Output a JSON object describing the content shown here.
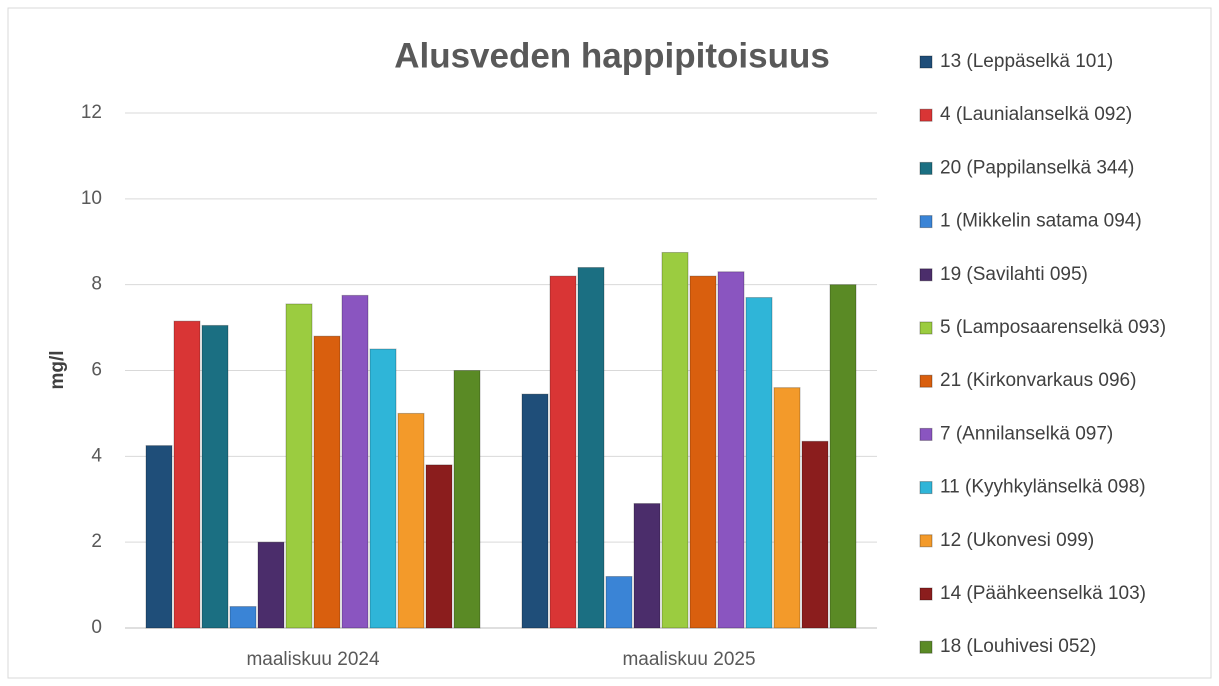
{
  "chart_data": {
    "type": "bar",
    "title": "Alusveden happipitoisuus",
    "y_label": "mg/l",
    "categories": [
      "maaliskuu 2024",
      "maaliskuu 2025"
    ],
    "series": [
      {
        "name": "13 (Leppäselkä 101)",
        "color": "#1f4e79",
        "values": [
          4.25,
          5.45
        ]
      },
      {
        "name": "4 (Launialanselkä 092)",
        "color": "#d93535",
        "values": [
          7.15,
          8.2
        ]
      },
      {
        "name": "20 (Pappilanselkä 344)",
        "color": "#1b6f82",
        "values": [
          7.05,
          8.4
        ]
      },
      {
        "name": "1 (Mikkelin satama 094)",
        "color": "#3a84d6",
        "values": [
          0.5,
          1.2
        ]
      },
      {
        "name": "19 (Savilahti 095)",
        "color": "#4b2d6b",
        "values": [
          2.0,
          2.9
        ]
      },
      {
        "name": "5 (Lamposaarenselkä 093)",
        "color": "#9bcc40",
        "values": [
          7.55,
          8.75
        ]
      },
      {
        "name": "21 (Kirkonvarkaus 096)",
        "color": "#d95f0e",
        "values": [
          6.8,
          8.2
        ]
      },
      {
        "name": "7 (Annilanselkä 097)",
        "color": "#8a55c0",
        "values": [
          7.75,
          8.3
        ]
      },
      {
        "name": "11 (Kyyhkylänselkä 098)",
        "color": "#2fb5d8",
        "values": [
          6.5,
          7.7
        ]
      },
      {
        "name": "12 (Ukonvesi 099)",
        "color": "#f39a2a",
        "values": [
          5.0,
          5.6
        ]
      },
      {
        "name": "14 (Päähkeenselkä 103)",
        "color": "#8b1d1d",
        "values": [
          3.8,
          4.35
        ]
      },
      {
        "name": "18 (Louhivesi 052)",
        "color": "#5a8a25",
        "values": [
          6.0,
          8.0
        ]
      }
    ],
    "ylim": [
      0,
      12
    ],
    "yticks": [
      0,
      2,
      4,
      6,
      8,
      10,
      12
    ],
    "grid": true,
    "legend": "right"
  }
}
